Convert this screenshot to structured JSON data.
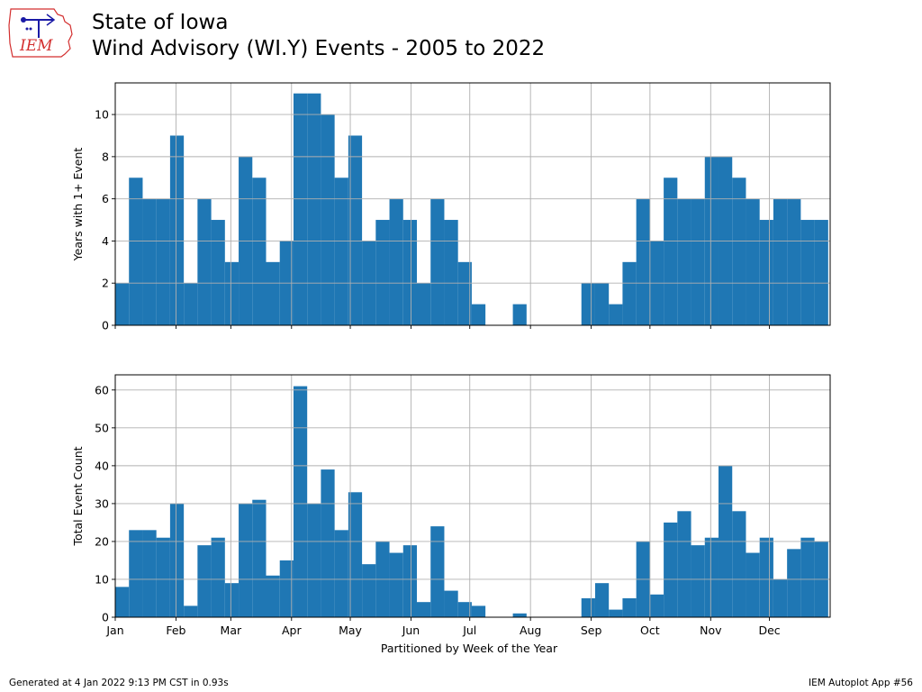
{
  "header": {
    "title_line1": "State of Iowa",
    "title_line2": "Wind Advisory (WI.Y) Events - 2005 to 2022",
    "logo_text": "IEM"
  },
  "footer": {
    "generated": "Generated at 4 Jan 2022 9:13 PM CST in 0.93s",
    "app": "IEM Autoplot App #56"
  },
  "colors": {
    "bar": "#1f77b4",
    "grid": "#b0b0b0",
    "logo_red": "#d32f2f",
    "logo_blue": "#1a1aa6"
  },
  "chart_data": [
    {
      "type": "bar",
      "ylabel": "Years with 1+ Event",
      "xlabel": "",
      "ylim": [
        0,
        11.5
      ],
      "yticks": [
        0,
        2,
        4,
        6,
        8,
        10
      ],
      "grid": true,
      "x_week": [
        1,
        2,
        3,
        4,
        5,
        6,
        7,
        8,
        9,
        10,
        11,
        12,
        13,
        14,
        15,
        16,
        17,
        18,
        19,
        20,
        21,
        22,
        23,
        24,
        25,
        26,
        27,
        28,
        29,
        30,
        31,
        32,
        33,
        34,
        35,
        36,
        37,
        38,
        39,
        40,
        41,
        42,
        43,
        44,
        45,
        46,
        47,
        48,
        49,
        50,
        51,
        52,
        53
      ],
      "values": [
        2,
        7,
        6,
        6,
        9,
        2,
        6,
        5,
        3,
        8,
        7,
        3,
        4,
        11,
        11,
        10,
        7,
        9,
        4,
        5,
        6,
        5,
        2,
        6,
        5,
        3,
        1,
        0,
        0,
        1,
        0,
        0,
        0,
        0,
        2,
        2,
        1,
        3,
        6,
        4,
        7,
        6,
        6,
        8,
        8,
        7,
        6,
        5,
        6,
        6,
        5,
        5,
        0
      ],
      "month_ticks": [
        "Jan",
        "Feb",
        "Mar",
        "Apr",
        "May",
        "Jun",
        "Jul",
        "Aug",
        "Sep",
        "Oct",
        "Nov",
        "Dec"
      ],
      "show_month_labels": false
    },
    {
      "type": "bar",
      "ylabel": "Total Event Count",
      "xlabel": "Partitioned by Week of the Year",
      "ylim": [
        0,
        64
      ],
      "yticks": [
        0,
        10,
        20,
        30,
        40,
        50,
        60
      ],
      "grid": true,
      "x_week": [
        1,
        2,
        3,
        4,
        5,
        6,
        7,
        8,
        9,
        10,
        11,
        12,
        13,
        14,
        15,
        16,
        17,
        18,
        19,
        20,
        21,
        22,
        23,
        24,
        25,
        26,
        27,
        28,
        29,
        30,
        31,
        32,
        33,
        34,
        35,
        36,
        37,
        38,
        39,
        40,
        41,
        42,
        43,
        44,
        45,
        46,
        47,
        48,
        49,
        50,
        51,
        52,
        53
      ],
      "values": [
        8,
        23,
        23,
        21,
        30,
        3,
        19,
        21,
        9,
        30,
        31,
        11,
        15,
        61,
        30,
        39,
        23,
        33,
        14,
        20,
        17,
        19,
        4,
        24,
        7,
        4,
        3,
        0,
        0,
        1,
        0,
        0,
        0,
        0,
        5,
        9,
        2,
        5,
        20,
        6,
        25,
        28,
        19,
        21,
        40,
        28,
        17,
        21,
        10,
        18,
        21,
        20,
        0
      ],
      "month_ticks": [
        "Jan",
        "Feb",
        "Mar",
        "Apr",
        "May",
        "Jun",
        "Jul",
        "Aug",
        "Sep",
        "Oct",
        "Nov",
        "Dec"
      ],
      "show_month_labels": true
    }
  ]
}
